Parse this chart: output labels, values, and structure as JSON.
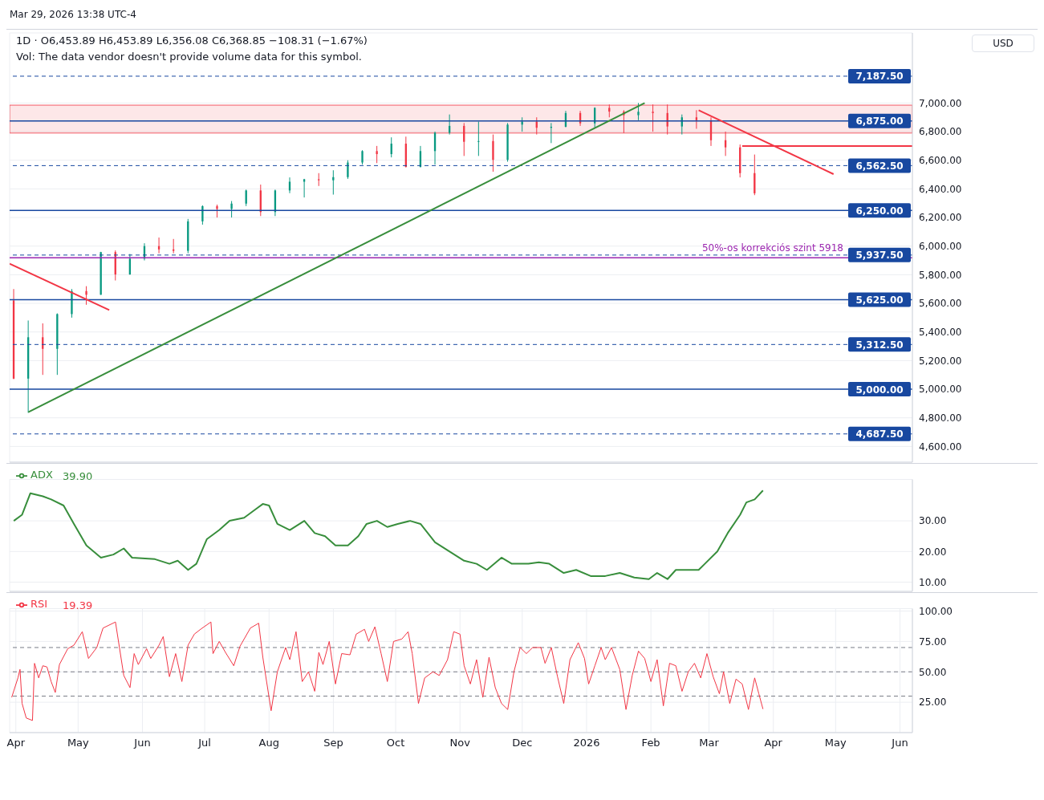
{
  "chart_data": [
    {
      "type": "candlestick",
      "title": "1D · O6,453.89 H6,453.89 L6,356.08 C6,368.85 −108.31 (−1.67%)",
      "annotations": [
        "Mar 29, 2026 13:38 UTC-4",
        "Vol: The data vendor doesn't provide volume data for this symbol.",
        "USD"
      ],
      "x": [
        "2025-03-31",
        "2025-04-07",
        "2025-04-14",
        "2025-04-21",
        "2025-04-28",
        "2025-05-05",
        "2025-05-12",
        "2025-05-19",
        "2025-05-26",
        "2025-06-02",
        "2025-06-09",
        "2025-06-16",
        "2025-06-23",
        "2025-06-30",
        "2025-07-07",
        "2025-07-14",
        "2025-07-21",
        "2025-07-28",
        "2025-08-04",
        "2025-08-11",
        "2025-08-18",
        "2025-08-25",
        "2025-09-01",
        "2025-09-08",
        "2025-09-15",
        "2025-09-22",
        "2025-09-29",
        "2025-10-06",
        "2025-10-13",
        "2025-10-20",
        "2025-10-27",
        "2025-11-03",
        "2025-11-10",
        "2025-11-17",
        "2025-11-24",
        "2025-12-01",
        "2025-12-08",
        "2025-12-15",
        "2025-12-22",
        "2025-12-29",
        "2026-01-05",
        "2026-01-12",
        "2026-01-19",
        "2026-01-26",
        "2026-02-02",
        "2026-02-09",
        "2026-02-16",
        "2026-02-23",
        "2026-03-02",
        "2026-03-09",
        "2026-03-16",
        "2026-03-23"
      ],
      "ohlc": [
        [
          5620,
          5700,
          5070,
          5074
        ],
        [
          5074,
          5480,
          4835,
          5363
        ],
        [
          5363,
          5460,
          5100,
          5282
        ],
        [
          5282,
          5530,
          5100,
          5525
        ],
        [
          5525,
          5700,
          5500,
          5686
        ],
        [
          5686,
          5720,
          5590,
          5660
        ],
        [
          5660,
          5960,
          5660,
          5958
        ],
        [
          5958,
          5970,
          5760,
          5802
        ],
        [
          5802,
          5945,
          5800,
          5912
        ],
        [
          5912,
          6020,
          5900,
          6000
        ],
        [
          6000,
          6060,
          5950,
          5977
        ],
        [
          5977,
          6050,
          5950,
          5967
        ],
        [
          5967,
          6190,
          5950,
          6173
        ],
        [
          6173,
          6285,
          6150,
          6279
        ],
        [
          6279,
          6290,
          6200,
          6260
        ],
        [
          6260,
          6315,
          6200,
          6297
        ],
        [
          6297,
          6395,
          6280,
          6389
        ],
        [
          6389,
          6430,
          6210,
          6238
        ],
        [
          6238,
          6395,
          6210,
          6389
        ],
        [
          6389,
          6480,
          6370,
          6450
        ],
        [
          6450,
          6470,
          6340,
          6467
        ],
        [
          6467,
          6510,
          6420,
          6460
        ],
        [
          6460,
          6530,
          6360,
          6482
        ],
        [
          6482,
          6600,
          6470,
          6584
        ],
        [
          6584,
          6670,
          6570,
          6664
        ],
        [
          6664,
          6700,
          6580,
          6643
        ],
        [
          6643,
          6760,
          6620,
          6716
        ],
        [
          6716,
          6765,
          6550,
          6553
        ],
        [
          6553,
          6700,
          6550,
          6664
        ],
        [
          6664,
          6800,
          6570,
          6792
        ],
        [
          6792,
          6920,
          6780,
          6840
        ],
        [
          6840,
          6860,
          6630,
          6729
        ],
        [
          6729,
          6870,
          6630,
          6734
        ],
        [
          6734,
          6780,
          6520,
          6603
        ],
        [
          6603,
          6860,
          6590,
          6849
        ],
        [
          6849,
          6900,
          6800,
          6870
        ],
        [
          6870,
          6900,
          6780,
          6827
        ],
        [
          6827,
          6860,
          6720,
          6834
        ],
        [
          6834,
          6945,
          6830,
          6930
        ],
        [
          6930,
          6945,
          6840,
          6858
        ],
        [
          6858,
          6970,
          6830,
          6966
        ],
        [
          6966,
          6990,
          6900,
          6940
        ],
        [
          6940,
          6950,
          6790,
          6915
        ],
        [
          6915,
          7000,
          6880,
          6939
        ],
        [
          6939,
          6990,
          6800,
          6930
        ],
        [
          6930,
          6990,
          6780,
          6836
        ],
        [
          6836,
          6920,
          6780,
          6900
        ],
        [
          6900,
          6950,
          6820,
          6880
        ],
        [
          6880,
          6900,
          6700,
          6740
        ],
        [
          6740,
          6800,
          6630,
          6690
        ],
        [
          6690,
          6710,
          6480,
          6510
        ],
        [
          6510,
          6640,
          6356,
          6369
        ]
      ],
      "colors": [
        "#f23645",
        "#089981",
        "#f23645",
        "#089981",
        "#089981",
        "#f23645",
        "#089981",
        "#f23645",
        "#089981",
        "#089981",
        "#f23645",
        "#f23645",
        "#089981",
        "#089981",
        "#f23645",
        "#089981",
        "#089981",
        "#f23645",
        "#089981",
        "#089981",
        "#089981",
        "#f23645",
        "#089981",
        "#089981",
        "#089981",
        "#f23645",
        "#089981",
        "#f23645",
        "#089981",
        "#089981",
        "#089981",
        "#f23645",
        "#089981",
        "#f23645",
        "#089981",
        "#089981",
        "#f23645",
        "#089981",
        "#089981",
        "#f23645",
        "#089981",
        "#f23645",
        "#f23645",
        "#089981",
        "#f23645",
        "#f23645",
        "#089981",
        "#f23645",
        "#f23645",
        "#f23645",
        "#f23645",
        "#f23645"
      ],
      "series": [
        {
          "type": "line",
          "color": "#388e3c",
          "x": [
            "2025-04-07",
            "2026-01-29"
          ],
          "values": [
            4840,
            7000
          ]
        },
        {
          "type": "line",
          "color": "#f23645",
          "x": [
            "2025-03-29",
            "2025-05-16"
          ],
          "values": [
            5877,
            5553
          ]
        },
        {
          "type": "line",
          "color": "#f23645",
          "x": [
            "2026-02-24",
            "2026-04-30"
          ],
          "values": [
            6950,
            6503
          ]
        },
        {
          "type": "line",
          "color": "#f23645",
          "x": [
            "2026-03-17",
            "2026-06-07"
          ],
          "values": [
            6700,
            6700
          ]
        }
      ],
      "bands": [
        {
          "axis": "y",
          "from": 6790,
          "to": 6985,
          "color": "#f23645"
        }
      ],
      "ref_lines": [
        {
          "axis": "y",
          "value": 7187.5,
          "label": "7,187.50",
          "color": "#1848a0",
          "line_style": "dashed"
        },
        {
          "axis": "y",
          "value": 6875,
          "label": "6,875.00",
          "color": "#1848a0",
          "line_style": "solid"
        },
        {
          "axis": "y",
          "value": 6562.5,
          "label": "6,562.50",
          "color": "#1848a0",
          "line_style": "dashed"
        },
        {
          "axis": "y",
          "value": 6250,
          "label": "6,250.00",
          "color": "#1848a0",
          "line_style": "solid"
        },
        {
          "axis": "y",
          "value": 5937.5,
          "label": "5,937.50",
          "color": "#1848a0",
          "line_style": "dashed"
        },
        {
          "axis": "y",
          "value": 5918,
          "label": "50%-os korrekciós szint 5918",
          "color": "#9c27b0",
          "line_style": "solid"
        },
        {
          "axis": "y",
          "value": 5625,
          "label": "5,625.00",
          "color": "#1848a0",
          "line_style": "solid"
        },
        {
          "axis": "y",
          "value": 5312.5,
          "label": "5,312.50",
          "color": "#1848a0",
          "line_style": "dashed"
        },
        {
          "axis": "y",
          "value": 5000,
          "label": "5,000.00",
          "color": "#1848a0",
          "line_style": "solid"
        },
        {
          "axis": "y",
          "value": 4687.5,
          "label": "4,687.50",
          "color": "#1848a0",
          "line_style": "dashed"
        }
      ],
      "xlim": [
        "2025-03-29",
        "2026-06-07"
      ],
      "xticks": [
        {
          "value": "2025-04-01",
          "label": null
        },
        {
          "value": "2025-05-01",
          "label": null
        },
        {
          "value": "2025-06-01",
          "label": null
        },
        {
          "value": "2025-07-01",
          "label": null
        },
        {
          "value": "2025-08-01",
          "label": null
        },
        {
          "value": "2025-09-01",
          "label": null
        },
        {
          "value": "2025-10-01",
          "label": null
        },
        {
          "value": "2025-11-01",
          "label": null
        },
        {
          "value": "2025-12-01",
          "label": null
        },
        {
          "value": "2026-01-01",
          "label": null
        },
        {
          "value": "2026-02-01",
          "label": null
        },
        {
          "value": "2026-03-01",
          "label": null
        },
        {
          "value": "2026-04-01",
          "label": null
        },
        {
          "value": "2026-05-01",
          "label": null
        },
        {
          "value": "2026-06-01",
          "label": null
        }
      ],
      "ylim": [
        4490,
        7490
      ],
      "yticks": [
        {
          "value": 4600,
          "label": "4,600.00"
        },
        {
          "value": 4800,
          "label": "4,800.00"
        },
        {
          "value": 5000,
          "label": "5,000.00"
        },
        {
          "value": 5200,
          "label": "5,200.00"
        },
        {
          "value": 5400,
          "label": "5,400.00"
        },
        {
          "value": 5600,
          "label": "5,600.00"
        },
        {
          "value": 5800,
          "label": "5,800.00"
        },
        {
          "value": 6000,
          "label": "6,000.00"
        },
        {
          "value": 6200,
          "label": "6,200.00"
        },
        {
          "value": 6400,
          "label": "6,400.00"
        },
        {
          "value": 6600,
          "label": "6,600.00"
        },
        {
          "value": 6800,
          "label": "6,800.00"
        },
        {
          "value": 7000,
          "label": "7,000.00"
        }
      ],
      "grid": true,
      "tick_labels": "y"
    },
    {
      "type": "line",
      "legend": "top left",
      "grid": true,
      "tick_labels": "y",
      "annotations": [
        "39.90"
      ],
      "series": [
        {
          "name": "ADX",
          "color": "#388e3c",
          "x": [
            "2025-03-31",
            "2025-04-04",
            "2025-04-08",
            "2025-04-14",
            "2025-04-18",
            "2025-04-24",
            "2025-04-29",
            "2025-05-05",
            "2025-05-12",
            "2025-05-18",
            "2025-05-23",
            "2025-05-27",
            "2025-06-07",
            "2025-06-14",
            "2025-06-18",
            "2025-06-23",
            "2025-06-27",
            "2025-07-02",
            "2025-07-08",
            "2025-07-13",
            "2025-07-20",
            "2025-07-26",
            "2025-07-29",
            "2025-08-01",
            "2025-08-05",
            "2025-08-11",
            "2025-08-18",
            "2025-08-23",
            "2025-08-28",
            "2025-09-02",
            "2025-09-08",
            "2025-09-13",
            "2025-09-17",
            "2025-09-22",
            "2025-09-27",
            "2025-10-02",
            "2025-10-08",
            "2025-10-13",
            "2025-10-20",
            "2025-10-27",
            "2025-11-03",
            "2025-11-09",
            "2025-11-14",
            "2025-11-21",
            "2025-11-26",
            "2025-12-04",
            "2025-12-09",
            "2025-12-14",
            "2025-12-21",
            "2025-12-27",
            "2026-01-03",
            "2026-01-10",
            "2026-01-17",
            "2026-01-24",
            "2026-01-31",
            "2026-02-04",
            "2026-02-09",
            "2026-02-13",
            "2026-02-18",
            "2026-02-24",
            "2026-02-27",
            "2026-03-05",
            "2026-03-10",
            "2026-03-16",
            "2026-03-19",
            "2026-03-23",
            "2026-03-27"
          ],
          "values": [
            30,
            32,
            39,
            38,
            37,
            35,
            29,
            22,
            18,
            19,
            21,
            18,
            17.5,
            16,
            17,
            14,
            16,
            24,
            27,
            30,
            31,
            34,
            35.5,
            35,
            29,
            27,
            30,
            26,
            25,
            22,
            22,
            25,
            29,
            30,
            28,
            29,
            30,
            29,
            23,
            20,
            17,
            16,
            14,
            18,
            16,
            16,
            16.5,
            16,
            13,
            14,
            12,
            12,
            13,
            11.5,
            11,
            13,
            11,
            14,
            14,
            14,
            16,
            20,
            26,
            32,
            36,
            37,
            39.9
          ]
        }
      ],
      "xlim": [
        "2025-03-29",
        "2026-06-07"
      ],
      "xticks": [
        {
          "value": "2025-04-01",
          "label": null
        },
        {
          "value": "2025-05-01",
          "label": null
        },
        {
          "value": "2025-06-01",
          "label": null
        },
        {
          "value": "2025-07-01",
          "label": null
        },
        {
          "value": "2025-08-01",
          "label": null
        },
        {
          "value": "2025-09-01",
          "label": null
        },
        {
          "value": "2025-10-01",
          "label": null
        },
        {
          "value": "2025-11-01",
          "label": null
        },
        {
          "value": "2025-12-01",
          "label": null
        },
        {
          "value": "2026-01-01",
          "label": null
        },
        {
          "value": "2026-02-01",
          "label": null
        },
        {
          "value": "2026-03-01",
          "label": null
        },
        {
          "value": "2026-04-01",
          "label": null
        },
        {
          "value": "2026-05-01",
          "label": null
        },
        {
          "value": "2026-06-01",
          "label": null
        }
      ],
      "ylim": [
        7,
        43.5
      ],
      "yticks": [
        {
          "value": 10,
          "label": "10.00"
        },
        {
          "value": 20,
          "label": "20.00"
        },
        {
          "value": 30,
          "label": "30.00"
        }
      ]
    },
    {
      "type": "line",
      "legend": "top left",
      "grid": true,
      "annotations": [
        "19.39"
      ],
      "ref_lines": [
        {
          "axis": "y",
          "value": 70,
          "color": "#787b86",
          "line_style": "dashed"
        },
        {
          "axis": "y",
          "value": 50,
          "color": "#787b86",
          "line_style": "dashed"
        },
        {
          "axis": "y",
          "value": 30,
          "color": "#787b86",
          "line_style": "dashed"
        }
      ],
      "series": [
        {
          "name": "RSI",
          "color": "#f23645",
          "x": [
            "2025-03-30",
            "2025-04-02",
            "2025-04-03",
            "2025-04-04",
            "2025-04-06",
            "2025-04-09",
            "2025-04-10",
            "2025-04-12",
            "2025-04-14",
            "2025-04-16",
            "2025-04-18",
            "2025-04-20",
            "2025-04-22",
            "2025-04-26",
            "2025-04-29",
            "2025-05-03",
            "2025-05-06",
            "2025-05-10",
            "2025-05-13",
            "2025-05-19",
            "2025-05-23",
            "2025-05-26",
            "2025-05-28",
            "2025-05-30",
            "2025-06-03",
            "2025-06-05",
            "2025-06-09",
            "2025-06-11",
            "2025-06-14",
            "2025-06-17",
            "2025-06-20",
            "2025-06-23",
            "2025-06-26",
            "2025-06-29",
            "2025-07-04",
            "2025-07-05",
            "2025-07-08",
            "2025-07-11",
            "2025-07-15",
            "2025-07-18",
            "2025-07-23",
            "2025-07-27",
            "2025-07-29",
            "2025-08-02",
            "2025-08-05",
            "2025-08-09",
            "2025-08-11",
            "2025-08-14",
            "2025-08-17",
            "2025-08-20",
            "2025-08-23",
            "2025-08-25",
            "2025-08-27",
            "2025-08-30",
            "2025-09-02",
            "2025-09-05",
            "2025-09-09",
            "2025-09-12",
            "2025-09-16",
            "2025-09-18",
            "2025-09-21",
            "2025-09-24",
            "2025-09-27",
            "2025-09-30",
            "2025-10-04",
            "2025-10-07",
            "2025-10-09",
            "2025-10-12",
            "2025-10-15",
            "2025-10-19",
            "2025-10-22",
            "2025-10-26",
            "2025-10-29",
            "2025-11-01",
            "2025-11-03",
            "2025-11-06",
            "2025-11-09",
            "2025-11-12",
            "2025-11-15",
            "2025-11-18",
            "2025-11-21",
            "2025-11-24",
            "2025-11-27",
            "2025-11-30",
            "2025-12-03",
            "2025-12-06",
            "2025-12-10",
            "2025-12-12",
            "2025-12-15",
            "2025-12-18",
            "2025-12-21",
            "2025-12-24",
            "2025-12-28",
            "2025-12-31",
            "2026-01-02",
            "2026-01-05",
            "2026-01-08",
            "2026-01-10",
            "2026-01-13",
            "2026-01-17",
            "2026-01-20",
            "2026-01-23",
            "2026-01-26",
            "2026-01-29",
            "2026-02-01",
            "2026-02-04",
            "2026-02-07",
            "2026-02-10",
            "2026-02-13",
            "2026-02-16",
            "2026-02-19",
            "2026-02-22",
            "2026-02-25",
            "2026-02-28",
            "2026-03-03",
            "2026-03-06",
            "2026-03-08",
            "2026-03-11",
            "2026-03-14",
            "2026-03-17",
            "2026-03-20",
            "2026-03-23",
            "2026-03-25",
            "2026-03-27"
          ],
          "values": [
            29,
            45,
            52,
            24,
            12,
            10,
            57,
            45,
            55,
            54,
            42,
            33,
            56,
            69,
            72,
            83,
            61,
            70,
            86,
            91,
            47,
            37,
            65,
            56,
            69,
            61,
            72,
            79,
            46,
            65,
            42,
            72,
            81,
            85,
            91,
            65,
            75,
            66,
            55,
            71,
            86,
            90,
            62,
            18,
            50,
            70,
            60,
            83,
            42,
            50,
            34,
            66,
            56,
            75,
            40,
            65,
            64,
            81,
            85,
            75,
            87,
            65,
            42,
            75,
            77,
            83,
            65,
            24,
            45,
            50,
            47,
            60,
            83,
            81,
            55,
            40,
            60,
            29,
            62,
            37,
            24,
            19,
            50,
            70,
            65,
            70,
            70,
            57,
            70,
            46,
            24,
            60,
            74,
            61,
            40,
            55,
            70,
            60,
            70,
            52,
            19,
            47,
            67,
            61,
            42,
            60,
            22,
            57,
            55,
            34,
            50,
            57,
            45,
            65,
            46,
            32,
            50,
            24,
            44,
            40,
            19,
            45,
            32,
            19.39
          ]
        }
      ],
      "xlim": [
        "2025-03-29",
        "2026-06-07"
      ],
      "xticks": [
        {
          "value": "2025-04-01",
          "label": "Apr"
        },
        {
          "value": "2025-05-01",
          "label": "May"
        },
        {
          "value": "2025-06-01",
          "label": "Jun"
        },
        {
          "value": "2025-07-01",
          "label": "Jul"
        },
        {
          "value": "2025-08-01",
          "label": "Aug"
        },
        {
          "value": "2025-09-01",
          "label": "Sep"
        },
        {
          "value": "2025-10-01",
          "label": "Oct"
        },
        {
          "value": "2025-11-01",
          "label": "Nov"
        },
        {
          "value": "2025-12-01",
          "label": "Dec"
        },
        {
          "value": "2026-01-01",
          "label": "2026"
        },
        {
          "value": "2026-02-01",
          "label": "Feb"
        },
        {
          "value": "2026-03-01",
          "label": "Mar"
        },
        {
          "value": "2026-04-01",
          "label": "Apr"
        },
        {
          "value": "2026-05-01",
          "label": "May"
        },
        {
          "value": "2026-06-01",
          "label": "Jun"
        }
      ],
      "ylim": [
        0,
        102
      ],
      "yticks": [
        {
          "value": 25,
          "label": "25.00"
        },
        {
          "value": 50,
          "label": "50.00"
        },
        {
          "value": 75,
          "label": "75.00"
        },
        {
          "value": 100,
          "label": "100.00"
        }
      ]
    }
  ]
}
